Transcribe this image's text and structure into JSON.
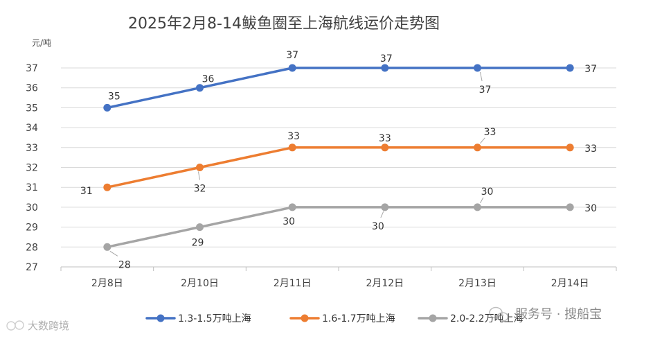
{
  "chart_data": {
    "type": "line",
    "title": "2025年2月8-14鲅鱼圈至上海航线运价走势图",
    "ylabel": "元/吨",
    "categories": [
      "2月8日",
      "2月10日",
      "2月11日",
      "2月12日",
      "2月13日",
      "2月14日"
    ],
    "ylim": [
      27,
      37
    ],
    "yticks": [
      27,
      28,
      29,
      30,
      31,
      32,
      33,
      34,
      35,
      36,
      37
    ],
    "grid": true,
    "legend_position": "bottom",
    "series": [
      {
        "name": "1.3-1.5万吨上海",
        "color": "#4472C4",
        "values": [
          35,
          36,
          37,
          37,
          37,
          37
        ]
      },
      {
        "name": "1.6-1.7万吨上海",
        "color": "#ED7D31",
        "values": [
          31,
          32,
          33,
          33,
          33,
          33
        ]
      },
      {
        "name": "2.0-2.2万吨上海",
        "color": "#A5A5A5",
        "values": [
          28,
          29,
          30,
          30,
          30,
          30
        ]
      }
    ]
  },
  "watermark": {
    "right_text": "服务号 · 搜船宝",
    "left_text": "大数跨境",
    "icon": "wechat-icon"
  }
}
